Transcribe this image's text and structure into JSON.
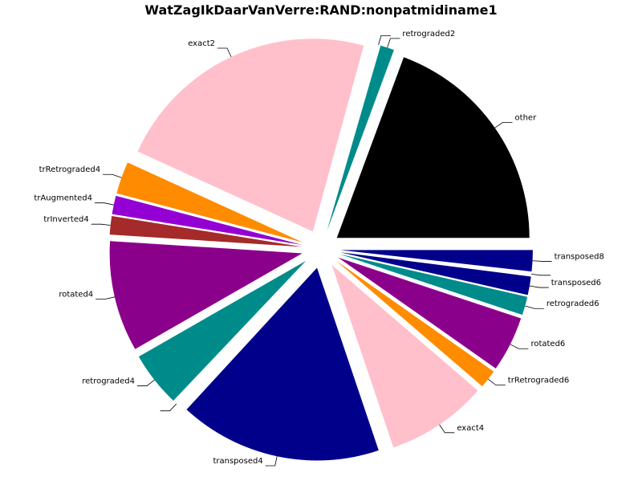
{
  "chart_data": {
    "type": "pie",
    "title": "WatZagIkDaarVanVerre:RAND:nonpatmidiname1",
    "slices": [
      {
        "label": "other",
        "value": 25.0,
        "color": "#000000"
      },
      {
        "label": "retrograded2",
        "value": 1.5,
        "color": "#008b8b"
      },
      {
        "label": "",
        "value": 0.3,
        "color": "#ffffff"
      },
      {
        "label": "exact2",
        "value": 29.0,
        "color": "#ffc0cb"
      },
      {
        "label": "trRetrograded4",
        "value": 3.5,
        "color": "#ff8c00"
      },
      {
        "label": "trAugmented4",
        "value": 2.0,
        "color": "#9400d3"
      },
      {
        "label": "trInverted4",
        "value": 2.0,
        "color": "#a52a2a"
      },
      {
        "label": "rotated4",
        "value": 12.0,
        "color": "#8b008b"
      },
      {
        "label": "retrograded4",
        "value": 6.0,
        "color": "#008b8b"
      },
      {
        "label": "",
        "value": 0.3,
        "color": "#ffffff"
      },
      {
        "label": "transposed4",
        "value": 22.0,
        "color": "#00008b"
      },
      {
        "label": "exact4",
        "value": 11.0,
        "color": "#ffc0cb"
      },
      {
        "label": "trRetrograded6",
        "value": 2.0,
        "color": "#ff8c00"
      },
      {
        "label": "rotated6",
        "value": 6.0,
        "color": "#8b008b"
      },
      {
        "label": "retrograded6",
        "value": 2.0,
        "color": "#008b8b"
      },
      {
        "label": "transposed6",
        "value": 2.0,
        "color": "#00008b"
      },
      {
        "label": "",
        "value": 0.3,
        "color": "#ffffff"
      },
      {
        "label": "transposed8",
        "value": 2.3,
        "color": "#00008b"
      }
    ]
  }
}
